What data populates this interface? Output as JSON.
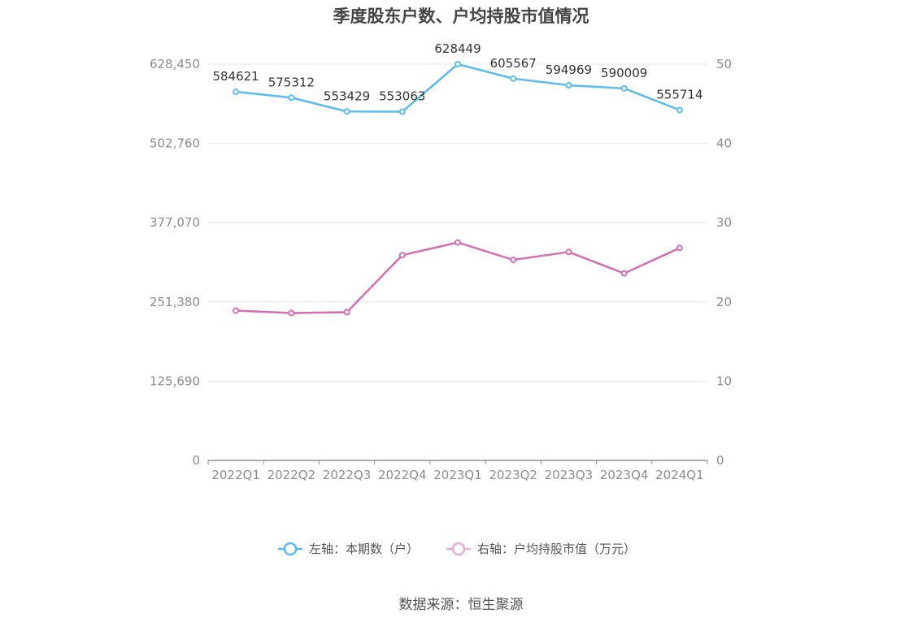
{
  "chart_data": {
    "type": "line",
    "title": "季度股东户数、户均持股市值情况",
    "categories": [
      "2022Q1",
      "2022Q2",
      "2022Q3",
      "2022Q4",
      "2023Q1",
      "2023Q2",
      "2023Q3",
      "2023Q4",
      "2024Q1"
    ],
    "left_axis": {
      "ticks": [
        "0",
        "125,690",
        "251,380",
        "377,070",
        "502,760",
        "628,450"
      ],
      "ylim": [
        0,
        628450
      ]
    },
    "right_axis": {
      "ticks": [
        "0",
        "10",
        "20",
        "30",
        "40",
        "50"
      ],
      "ylim": [
        0,
        50
      ]
    },
    "series": [
      {
        "name": "左轴：本期数（户）",
        "axis": "left",
        "color": "#5bbcf0",
        "values": [
          584621,
          575312,
          553429,
          553063,
          628449,
          605567,
          594969,
          590009,
          555714
        ],
        "show_labels": true
      },
      {
        "name": "右轴：户均持股市值（万元）",
        "axis": "right",
        "color": "#d46eb5",
        "legend_color": "#f0a8d4",
        "values": [
          18.9,
          18.6,
          18.7,
          25.9,
          27.5,
          25.3,
          26.3,
          23.6,
          26.8
        ],
        "show_labels": false
      }
    ],
    "grid": true,
    "legend_position": "bottom"
  },
  "source": "数据来源：恒生聚源"
}
